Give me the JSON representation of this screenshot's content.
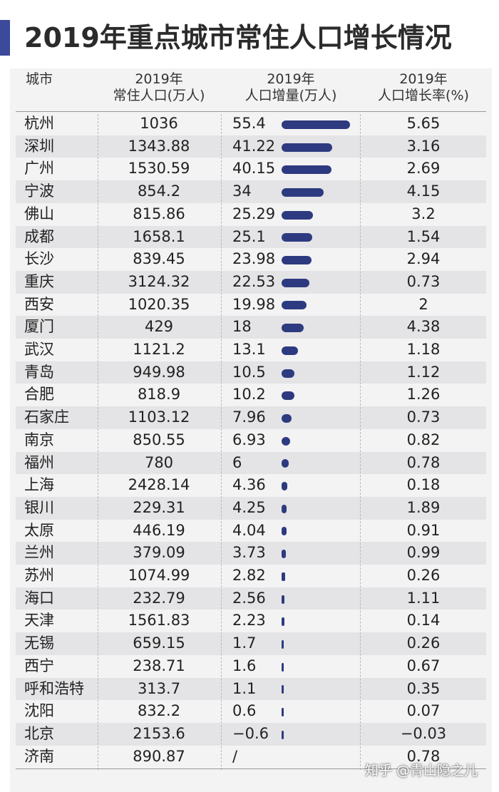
{
  "title": "2019年重点城市常住人口增长情况",
  "colors": {
    "accent": "#3b4a9a",
    "bar": "#2e3a80",
    "row_alt": "#e4e4e6",
    "panel": "#f3f3f4"
  },
  "header": {
    "city": "城市",
    "pop_line1": "2019年",
    "pop_line2": "常住人口(万人)",
    "inc_line1": "2019年",
    "inc_line2": "人口增量(万人)",
    "rate_line1": "2019年",
    "rate_line2": "人口增长率(%)"
  },
  "watermark": "知乎 @青山隐之儿",
  "chart_data": {
    "type": "table",
    "title": "2019年重点城市常住人口增长情况",
    "columns": [
      "城市",
      "2019年常住人口(万人)",
      "2019年人口增量(万人)",
      "2019年人口增长率(%)"
    ],
    "rows": [
      {
        "city": "杭州",
        "pop": "1036",
        "inc": "55.4",
        "inc_value": 55.4,
        "rate": "5.65"
      },
      {
        "city": "深圳",
        "pop": "1343.88",
        "inc": "41.22",
        "inc_value": 41.22,
        "rate": "3.16"
      },
      {
        "city": "广州",
        "pop": "1530.59",
        "inc": "40.15",
        "inc_value": 40.15,
        "rate": "2.69"
      },
      {
        "city": "宁波",
        "pop": "854.2",
        "inc": "34",
        "inc_value": 34,
        "rate": "4.15"
      },
      {
        "city": "佛山",
        "pop": "815.86",
        "inc": "25.29",
        "inc_value": 25.29,
        "rate": "3.2"
      },
      {
        "city": "成都",
        "pop": "1658.1",
        "inc": "25.1",
        "inc_value": 25.1,
        "rate": "1.54"
      },
      {
        "city": "长沙",
        "pop": "839.45",
        "inc": "23.98",
        "inc_value": 23.98,
        "rate": "2.94"
      },
      {
        "city": "重庆",
        "pop": "3124.32",
        "inc": "22.53",
        "inc_value": 22.53,
        "rate": "0.73"
      },
      {
        "city": "西安",
        "pop": "1020.35",
        "inc": "19.98",
        "inc_value": 19.98,
        "rate": "2"
      },
      {
        "city": "厦门",
        "pop": "429",
        "inc": "18",
        "inc_value": 18,
        "rate": "4.38"
      },
      {
        "city": "武汉",
        "pop": "1121.2",
        "inc": "13.1",
        "inc_value": 13.1,
        "rate": "1.18"
      },
      {
        "city": "青岛",
        "pop": "949.98",
        "inc": "10.5",
        "inc_value": 10.5,
        "rate": "1.12"
      },
      {
        "city": "合肥",
        "pop": "818.9",
        "inc": "10.2",
        "inc_value": 10.2,
        "rate": "1.26"
      },
      {
        "city": "石家庄",
        "pop": "1103.12",
        "inc": "7.96",
        "inc_value": 7.96,
        "rate": "0.73"
      },
      {
        "city": "南京",
        "pop": "850.55",
        "inc": "6.93",
        "inc_value": 6.93,
        "rate": "0.82"
      },
      {
        "city": "福州",
        "pop": "780",
        "inc": "6",
        "inc_value": 6,
        "rate": "0.78"
      },
      {
        "city": "上海",
        "pop": "2428.14",
        "inc": "4.36",
        "inc_value": 4.36,
        "rate": "0.18"
      },
      {
        "city": "银川",
        "pop": "229.31",
        "inc": "4.25",
        "inc_value": 4.25,
        "rate": "1.89"
      },
      {
        "city": "太原",
        "pop": "446.19",
        "inc": "4.04",
        "inc_value": 4.04,
        "rate": "0.91"
      },
      {
        "city": "兰州",
        "pop": "379.09",
        "inc": "3.73",
        "inc_value": 3.73,
        "rate": "0.99"
      },
      {
        "city": "苏州",
        "pop": "1074.99",
        "inc": "2.82",
        "inc_value": 2.82,
        "rate": "0.26"
      },
      {
        "city": "海口",
        "pop": "232.79",
        "inc": "2.56",
        "inc_value": 2.56,
        "rate": "1.11"
      },
      {
        "city": "天津",
        "pop": "1561.83",
        "inc": "2.23",
        "inc_value": 2.23,
        "rate": "0.14"
      },
      {
        "city": "无锡",
        "pop": "659.15",
        "inc": "1.7",
        "inc_value": 1.7,
        "rate": "0.26"
      },
      {
        "city": "西宁",
        "pop": "238.71",
        "inc": "1.6",
        "inc_value": 1.6,
        "rate": "0.67"
      },
      {
        "city": "呼和浩特",
        "pop": "313.7",
        "inc": "1.1",
        "inc_value": 1.1,
        "rate": "0.35"
      },
      {
        "city": "沈阳",
        "pop": "832.2",
        "inc": "0.6",
        "inc_value": 0.6,
        "rate": "0.07"
      },
      {
        "city": "北京",
        "pop": "2153.6",
        "inc": "−0.6",
        "inc_value": -0.6,
        "rate": "−0.03"
      },
      {
        "city": "济南",
        "pop": "890.87",
        "inc": "/",
        "inc_value": null,
        "rate": "0.78"
      }
    ]
  }
}
